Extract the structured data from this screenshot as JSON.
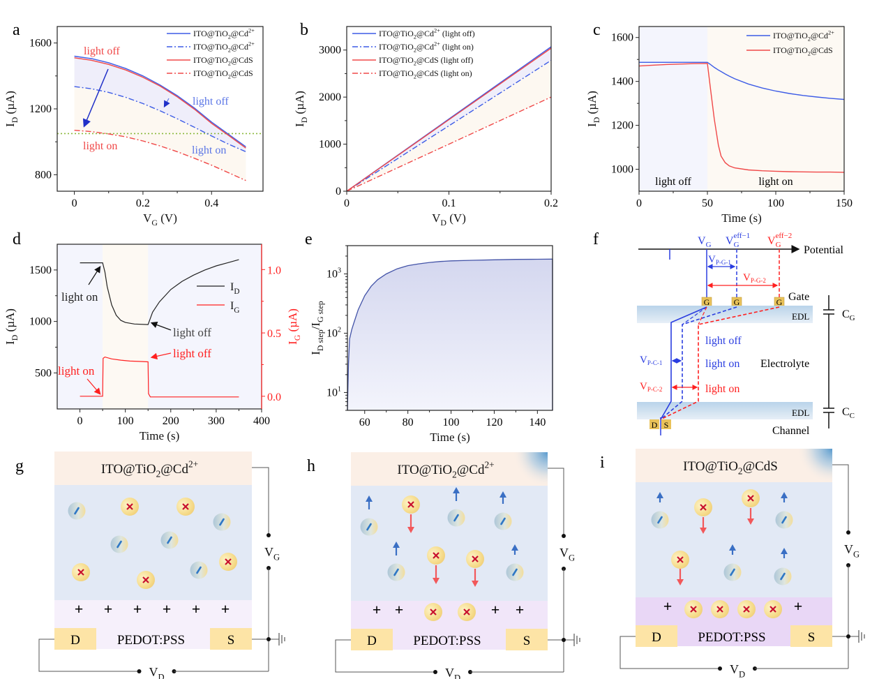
{
  "panel_labels": {
    "a": "a",
    "b": "b",
    "c": "c",
    "d": "d",
    "e": "e",
    "f": "f",
    "g": "g",
    "h": "h",
    "i": "i"
  },
  "colors": {
    "blue": "#3d5ce6",
    "red": "#f04848",
    "pure_red": "#ff2020",
    "green_ref": "#8ab83a",
    "light_off_bg": "#f4f5fd",
    "light_on_bg": "#fdf9f3",
    "fill_between_blue": "#efeefa",
    "fill_between_orange": "#fdf8f1",
    "gate_layer": "#fbefe6",
    "electrolyte": "#e2e9f5",
    "pedot_g": "#f6f0fb",
    "pedot_h": "#f1e6f9",
    "pedot_i": "#e9d7f6",
    "electrode": "#fde4a6",
    "anion_x": "#c8102e",
    "cation_dash": "#2f78c5",
    "arrow_up": "#3a6fc4",
    "arrow_down": "#f2585a"
  },
  "chart_data": [
    {
      "id": "a",
      "type": "line",
      "xlabel": "V_G (V)",
      "ylabel": "I_D (µA)",
      "xlim": [
        -0.05,
        0.55
      ],
      "ylim": [
        700,
        1700
      ],
      "xticks": [
        0,
        0.2,
        0.4
      ],
      "xtick_labels": [
        "0",
        "0.2",
        "0.4"
      ],
      "yticks": [
        800,
        1200,
        1600
      ],
      "ytick_labels": [
        "800",
        "1200",
        "1600"
      ],
      "legend": "top-right",
      "x": [
        0,
        0.05,
        0.1,
        0.15,
        0.2,
        0.25,
        0.3,
        0.35,
        0.4,
        0.45,
        0.5
      ],
      "series": [
        {
          "name": "ITO@TiO2@Cd2+",
          "label_main": "ITO@TiO",
          "label_sub": "2",
          "label_tail": "@Cd",
          "label_sup": "2+",
          "style": "solid",
          "color": "blue",
          "values": [
            1520,
            1505,
            1480,
            1445,
            1400,
            1345,
            1280,
            1205,
            1120,
            1045,
            970
          ]
        },
        {
          "name": "ITO@TiO2@Cd2+",
          "label_main": "ITO@TiO",
          "label_sub": "2",
          "label_tail": "@Cd",
          "label_sup": "2+",
          "style": "dashdot",
          "color": "blue",
          "values": [
            1335,
            1322,
            1300,
            1270,
            1232,
            1188,
            1140,
            1088,
            1035,
            985,
            940
          ]
        },
        {
          "name": "ITO@TiO2@CdS",
          "label_main": "ITO@TiO",
          "label_sub": "2",
          "label_tail": "@CdS",
          "label_sup": "",
          "style": "solid",
          "color": "red",
          "values": [
            1510,
            1495,
            1470,
            1436,
            1392,
            1338,
            1273,
            1198,
            1112,
            1038,
            962
          ]
        },
        {
          "name": "ITO@TiO2@CdS",
          "label_main": "ITO@TiO",
          "label_sub": "2",
          "label_tail": "@CdS",
          "label_sup": "",
          "style": "dashdot",
          "color": "red",
          "values": [
            1070,
            1062,
            1048,
            1030,
            1005,
            975,
            940,
            900,
            858,
            812,
            765
          ]
        }
      ],
      "reference_line": {
        "y": 1050,
        "style": "dotted",
        "color": "green_ref"
      },
      "annotations": [
        {
          "text": "light off",
          "color": "red",
          "x": 0.1,
          "y": 1620
        },
        {
          "text": "light on",
          "color": "red",
          "x": 0.07,
          "y": 1000
        },
        {
          "text": "light off",
          "color": "blue",
          "x": 0.41,
          "y": 1255
        },
        {
          "text": "light on",
          "color": "blue",
          "x": 0.4,
          "y": 970
        }
      ]
    },
    {
      "id": "b",
      "type": "line",
      "xlabel": "V_D (V)",
      "ylabel": "I_D (µA)",
      "xlim": [
        0,
        0.2
      ],
      "ylim": [
        0,
        3500
      ],
      "xticks": [
        0,
        0.1,
        0.2
      ],
      "xtick_labels": [
        "0",
        "0.1",
        "0.2"
      ],
      "yticks": [
        0,
        1000,
        2000,
        3000
      ],
      "ytick_labels": [
        "0",
        "1000",
        "2000",
        "3000"
      ],
      "legend": "top-left",
      "x": [
        0,
        0.2
      ],
      "series": [
        {
          "name": "ITO@TiO2@Cd2+ (light off)",
          "label_main": "ITO@TiO",
          "label_sub": "2",
          "label_tail": "@Cd",
          "label_sup": "2+",
          "label_suffix": " (light off)",
          "style": "solid",
          "color": "blue",
          "values": [
            0,
            3070
          ]
        },
        {
          "name": "ITO@TiO2@Cd2+ (light on)",
          "label_main": "ITO@TiO",
          "label_sub": "2",
          "label_tail": "@Cd",
          "label_sup": "2+",
          "label_suffix": " (light on)",
          "style": "dashdot",
          "color": "blue",
          "values": [
            0,
            2780
          ]
        },
        {
          "name": "ITO@TiO2@CdS (light off)",
          "label_main": "ITO@TiO",
          "label_sub": "2",
          "label_tail": "@CdS",
          "label_sup": "",
          "label_suffix": " (light off)",
          "style": "solid",
          "color": "red",
          "values": [
            0,
            3040
          ]
        },
        {
          "name": "ITO@TiO2@CdS (light on)",
          "label_main": "ITO@TiO",
          "label_sub": "2",
          "label_tail": "@CdS",
          "label_sup": "",
          "label_suffix": " (light on)",
          "style": "dashdot",
          "color": "red",
          "values": [
            0,
            2000
          ]
        }
      ]
    },
    {
      "id": "c",
      "type": "line",
      "xlabel": "Time (s)",
      "ylabel": "I_D (µA)",
      "xlim": [
        0,
        150
      ],
      "ylim": [
        900,
        1650
      ],
      "xticks": [
        0,
        50,
        100,
        150
      ],
      "xtick_labels": [
        "0",
        "50",
        "100",
        "150"
      ],
      "yticks": [
        1000,
        1200,
        1400,
        1600
      ],
      "ytick_labels": [
        "1000",
        "1200",
        "1400",
        "1600"
      ],
      "legend": "top-right",
      "regions": [
        {
          "from": 0,
          "to": 50,
          "label": "light off",
          "bg": "light_off_bg"
        },
        {
          "from": 50,
          "to": 150,
          "label": "light on",
          "bg": "light_on_bg"
        }
      ],
      "x": [
        0,
        10,
        20,
        30,
        40,
        50,
        52,
        55,
        58,
        60,
        63,
        66,
        70,
        80,
        90,
        100,
        110,
        120,
        130,
        140,
        150
      ],
      "series": [
        {
          "name": "ITO@TiO2@Cd2+",
          "label_main": "ITO@TiO",
          "label_sub": "2",
          "label_tail": "@Cd",
          "label_sup": "2+",
          "color": "blue",
          "values": [
            1487,
            1487,
            1487,
            1487,
            1487,
            1487,
            1478,
            1464,
            1452,
            1445,
            1434,
            1424,
            1412,
            1388,
            1370,
            1356,
            1345,
            1336,
            1329,
            1323,
            1318
          ]
        },
        {
          "name": "ITO@TiO2@CdS",
          "label_main": "ITO@TiO",
          "label_sub": "2",
          "label_tail": "@CdS",
          "label_sup": "",
          "color": "red",
          "values": [
            1470,
            1474,
            1477,
            1479,
            1481,
            1482,
            1380,
            1230,
            1110,
            1060,
            1030,
            1015,
            1006,
            997,
            993,
            991,
            989,
            988,
            987,
            987,
            986
          ]
        }
      ]
    },
    {
      "id": "d",
      "type": "line",
      "xlabel": "Time (s)",
      "ylabel": "I_D (µA)",
      "ylabel_right": "I_G (µA)",
      "xlim": [
        -50,
        400
      ],
      "ylim": [
        150,
        1750
      ],
      "ylim_right": [
        -0.1,
        1.2
      ],
      "xticks": [
        0,
        100,
        200,
        300,
        400
      ],
      "xtick_labels": [
        "0",
        "100",
        "200",
        "300",
        "400"
      ],
      "yticks": [
        500,
        1000,
        1500
      ],
      "ytick_labels": [
        "500",
        "1000",
        "1500"
      ],
      "yticks_right": [
        0.0,
        0.5,
        1.0
      ],
      "ytick_labels_right": [
        "0.0",
        "0.5",
        "1.0"
      ],
      "legend": "right",
      "regions": [
        {
          "from": -50,
          "to": 50,
          "bg": "light_off_bg"
        },
        {
          "from": 50,
          "to": 150,
          "bg": "light_on_bg"
        },
        {
          "from": 150,
          "to": 400,
          "bg": "light_off_bg"
        }
      ],
      "series": [
        {
          "name": "I_D",
          "label_main": "I",
          "label_sub": "D",
          "color": "#222222",
          "axis": "left",
          "x": [
            0,
            50,
            55,
            60,
            70,
            80,
            90,
            100,
            120,
            150,
            155,
            160,
            175,
            200,
            225,
            250,
            275,
            300,
            325,
            350
          ],
          "values": [
            1570,
            1570,
            1480,
            1340,
            1160,
            1060,
            1010,
            990,
            975,
            970,
            1030,
            1090,
            1190,
            1310,
            1390,
            1450,
            1500,
            1540,
            1570,
            1600
          ]
        },
        {
          "name": "I_G",
          "label_main": "I",
          "label_sub": "G",
          "color": "pure_red",
          "axis": "right",
          "x": [
            0,
            50,
            51,
            55,
            70,
            90,
            110,
            130,
            150,
            151,
            155,
            200,
            250,
            300,
            350
          ],
          "values": [
            0.0,
            0.0,
            0.3,
            0.31,
            0.295,
            0.285,
            0.278,
            0.275,
            0.272,
            0.02,
            -0.005,
            -0.005,
            -0.005,
            -0.005,
            -0.005
          ]
        }
      ],
      "annotations": [
        {
          "text": "light on",
          "color": "#222222"
        },
        {
          "text": "light off",
          "color": "#444444"
        },
        {
          "text": "light on",
          "color": "pure_red"
        },
        {
          "text": "light off",
          "color": "pure_red"
        }
      ]
    },
    {
      "id": "e",
      "type": "area",
      "xlabel": "Time (s)",
      "ylabel": "I_D step/I_G step",
      "ylabel_main": "I",
      "ylabel_sub1": "D step",
      "ylabel_mid": "/I",
      "ylabel_sub2": "G step",
      "xlim": [
        52,
        147
      ],
      "ylim": [
        5,
        3000
      ],
      "yscale": "log",
      "xticks": [
        60,
        80,
        100,
        120,
        140
      ],
      "xtick_labels": [
        "60",
        "80",
        "100",
        "120",
        "140"
      ],
      "yticks": [
        10,
        100,
        1000
      ],
      "ytick_labels": [
        "10",
        "10",
        "10"
      ],
      "ytick_exponents": [
        "1",
        "2",
        "3"
      ],
      "x": [
        52,
        52.5,
        53,
        54,
        55,
        57,
        60,
        63,
        66,
        70,
        75,
        80,
        85,
        90,
        95,
        100,
        110,
        120,
        130,
        140,
        147
      ],
      "values": [
        5,
        30,
        80,
        115,
        150,
        250,
        430,
        620,
        800,
        1000,
        1220,
        1380,
        1480,
        1560,
        1620,
        1660,
        1700,
        1730,
        1760,
        1770,
        1780
      ]
    }
  ],
  "diagram_f": {
    "potential_label": "Potential",
    "vg": {
      "main": "V",
      "sub": "G"
    },
    "vg_eff1": {
      "main": "V",
      "sub": "G",
      "sup": "eff−1"
    },
    "vg_eff2": {
      "main": "V",
      "sub": "G",
      "sup": "eff−2"
    },
    "vpg1": {
      "main": "V",
      "sub": "P-G-1"
    },
    "vpg2": {
      "main": "V",
      "sub": "P-G-2"
    },
    "vpc1": {
      "main": "V",
      "sub": "P-C-1"
    },
    "vpc2": {
      "main": "V",
      "sub": "P-C-2"
    },
    "gate_label": "Gate",
    "edl_label": "EDL",
    "electrolyte_label": "Electrolyte",
    "channel_label": "Channel",
    "cg": {
      "main": "C",
      "sub": "G"
    },
    "cc": {
      "main": "C",
      "sub": "C"
    },
    "g_box": "G",
    "d_box": "D",
    "s_box": "S",
    "light_off": "light off",
    "light_on_blue": "light on",
    "light_on_red": "light on"
  },
  "schematics": [
    {
      "id": "g",
      "gate_main": "ITO@TiO",
      "gate_sub": "2",
      "gate_tail": "@Cd",
      "gate_sup": "2+",
      "lit": false,
      "channel": "PEDOT:PSS",
      "drain": "D",
      "source": "S",
      "vg": {
        "main": "V",
        "sub": "G"
      },
      "vd": {
        "main": "V",
        "sub": "D"
      },
      "plus_count": 6,
      "channel_cations": 0
    },
    {
      "id": "h",
      "gate_main": "ITO@TiO",
      "gate_sub": "2",
      "gate_tail": "@Cd",
      "gate_sup": "2+",
      "lit": true,
      "channel": "PEDOT:PSS",
      "drain": "D",
      "source": "S",
      "vg": {
        "main": "V",
        "sub": "G"
      },
      "vd": {
        "main": "V",
        "sub": "D"
      },
      "plus_count": 4,
      "channel_cations": 2
    },
    {
      "id": "i",
      "gate_main": "ITO@TiO",
      "gate_sub": "2",
      "gate_tail": "@CdS",
      "gate_sup": "",
      "lit": true,
      "channel": "PEDOT:PSS",
      "drain": "D",
      "source": "S",
      "vg": {
        "main": "V",
        "sub": "G"
      },
      "vd": {
        "main": "V",
        "sub": "D"
      },
      "plus_count": 2,
      "channel_cations": 4
    }
  ]
}
